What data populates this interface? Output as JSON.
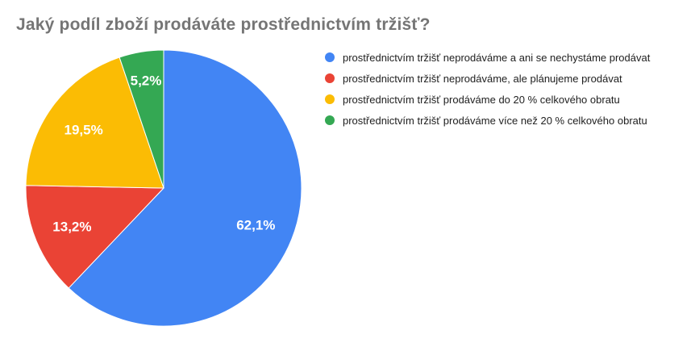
{
  "title": "Jaký podíl zboží prodáváte prostřednictvím tržišť?",
  "title_color": "#757575",
  "background_color": "#ffffff",
  "legend_text_color": "#212121",
  "chart_data": {
    "type": "pie",
    "title": "Jaký podíl zboží prodáváte prostřednictvím tržišť?",
    "unit": "%",
    "decimal_separator": ",",
    "start_angle_deg": 0,
    "direction": "clockwise",
    "legend_position": "right",
    "slice_border_color": "#ffffff",
    "slices": [
      {
        "label": "prostřednictvím tržišť neprodáváme a ani se nechystáme prodávat",
        "value": 62.1,
        "display": "62,1%",
        "color": "#4285F4"
      },
      {
        "label": "prostřednictvím tržišť neprodáváme, ale plánujeme prodávat",
        "value": 13.2,
        "display": "13,2%",
        "color": "#EA4335"
      },
      {
        "label": "prostřednictvím tržišť prodáváme do 20 % celkového obratu",
        "value": 19.5,
        "display": "19,5%",
        "color": "#FBBC04"
      },
      {
        "label": "prostřednictvím tržišť prodáváme více než 20 % celkového obratu",
        "value": 5.2,
        "display": "5,2%",
        "color": "#34A853"
      }
    ]
  }
}
